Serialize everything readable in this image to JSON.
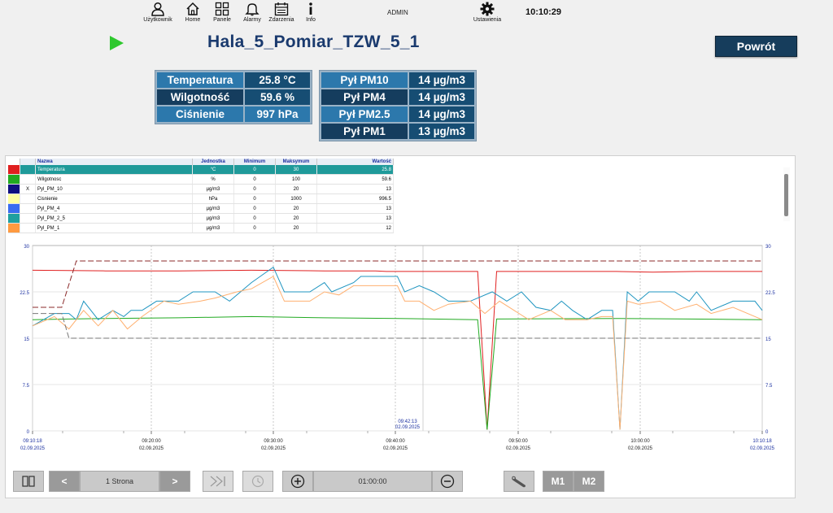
{
  "nav": {
    "items": [
      {
        "label": "Użytkownik",
        "icon": "user-icon"
      },
      {
        "label": "Home",
        "icon": "home-icon"
      },
      {
        "label": "Panele",
        "icon": "panels-icon"
      },
      {
        "label": "Alarmy",
        "icon": "bell-icon"
      },
      {
        "label": "Zdarzenia",
        "icon": "calendar-icon"
      },
      {
        "label": "Info",
        "icon": "info-icon"
      }
    ],
    "user": "ADMIN",
    "settings_label": "Ustawienia",
    "time": "10:10:29"
  },
  "page": {
    "title": "Hala_5_Pomiar_TZW_5_1",
    "back_label": "Powrót"
  },
  "env_table": [
    {
      "label": "Temperatura",
      "value": "25.8 °C"
    },
    {
      "label": "Wilgotność",
      "value": "59.6 %"
    },
    {
      "label": "Ciśnienie",
      "value": "997 hPa"
    }
  ],
  "dust_table": [
    {
      "label": "Pył PM10",
      "value": "14 µg/m3"
    },
    {
      "label": "Pył PM4",
      "value": "14 µg/m3"
    },
    {
      "label": "Pył PM2.5",
      "value": "14 µg/m3"
    },
    {
      "label": "Pył PM1",
      "value": "13 µg/m3"
    }
  ],
  "legend": {
    "headers": {
      "name": "Nazwa",
      "unit": "Jednostka",
      "min": "Minimum",
      "max": "Maksymum",
      "value": "Wartość"
    },
    "rows": [
      {
        "color": "#e02020",
        "mark": "",
        "name": "Temperatura",
        "unit": "°C",
        "min": "0",
        "max": "30",
        "value": "25.8",
        "selected": true
      },
      {
        "color": "#22aa22",
        "mark": "",
        "name": "Wilgotnosc",
        "unit": "%",
        "min": "0",
        "max": "100",
        "value": "59.6",
        "selected": false
      },
      {
        "color": "#101080",
        "mark": "X",
        "name": "Pyl_PM_10",
        "unit": "µg/m3",
        "min": "0",
        "max": "20",
        "value": "13",
        "selected": false
      },
      {
        "color": "#ffffa0",
        "mark": "",
        "name": "Cisnienie",
        "unit": "hPa",
        "min": "0",
        "max": "1000",
        "value": "996.5",
        "selected": false
      },
      {
        "color": "#3a6cf0",
        "mark": "",
        "name": "Pyl_PM_4",
        "unit": "µg/m3",
        "min": "0",
        "max": "20",
        "value": "13",
        "selected": false
      },
      {
        "color": "#1fa0a0",
        "mark": "",
        "name": "Pyl_PM_2_5",
        "unit": "µg/m3",
        "min": "0",
        "max": "20",
        "value": "13",
        "selected": false
      },
      {
        "color": "#ff9a40",
        "mark": "",
        "name": "Pyl_PM_1",
        "unit": "µg/m3",
        "min": "0",
        "max": "20",
        "value": "12",
        "selected": false
      }
    ]
  },
  "chart_data": {
    "type": "line",
    "yticks": [
      "30",
      "22.5",
      "15",
      "7.5",
      "0"
    ],
    "ylim": [
      0,
      30
    ],
    "x_labels": [
      {
        "time": "09:10:18",
        "date": "02.09.2025"
      },
      {
        "time": "09:20:00",
        "date": "02.09.2025"
      },
      {
        "time": "09:30:00",
        "date": "02.09.2025"
      },
      {
        "time": "09:40:00",
        "date": "02.09.2025"
      },
      {
        "time": "09:50:00",
        "date": "02.09.2025"
      },
      {
        "time": "10:00:00",
        "date": "02.09.2025"
      },
      {
        "time": "10:10:18",
        "date": "02.09.2025"
      }
    ],
    "cursor": {
      "time": "09:42:13",
      "date": "02.09.2025"
    },
    "series": [
      {
        "name": "Temperatura",
        "color": "#e02020",
        "values": [
          [
            0,
            26.0
          ],
          [
            10,
            25.9
          ],
          [
            20,
            25.9
          ],
          [
            30,
            26.0
          ],
          [
            40,
            25.9
          ],
          [
            47,
            25.9
          ],
          [
            48.5,
            25.8
          ],
          [
            50,
            25.8
          ],
          [
            55,
            25.8
          ],
          [
            61,
            25.8
          ],
          [
            62.3,
            0.2
          ],
          [
            63.6,
            25.8
          ],
          [
            70,
            25.8
          ],
          [
            80,
            25.8
          ],
          [
            85,
            25.7
          ],
          [
            91,
            25.8
          ],
          [
            100,
            25.8
          ]
        ]
      },
      {
        "name": "Wilgotnosc",
        "color": "#22aa22",
        "values": [
          [
            0,
            18.0
          ],
          [
            5,
            18.1
          ],
          [
            10,
            18.2
          ],
          [
            20,
            18.3
          ],
          [
            30,
            18.5
          ],
          [
            40,
            18.3
          ],
          [
            50,
            18.2
          ],
          [
            61,
            18.0
          ],
          [
            62.3,
            0.2
          ],
          [
            63.6,
            18.1
          ],
          [
            80,
            18.2
          ],
          [
            90,
            18.1
          ],
          [
            100,
            18.0
          ]
        ]
      },
      {
        "name": "Pyl_PM_2_5",
        "color": "#1f95c0",
        "values": [
          [
            0,
            17.0
          ],
          [
            3,
            19.0
          ],
          [
            5,
            19.0
          ],
          [
            6,
            18.0
          ],
          [
            7,
            21.0
          ],
          [
            9,
            18.0
          ],
          [
            11,
            19.5
          ],
          [
            12.5,
            18.5
          ],
          [
            13.5,
            19.5
          ],
          [
            15,
            19.5
          ],
          [
            17,
            21.0
          ],
          [
            20,
            21.0
          ],
          [
            22,
            22.5
          ],
          [
            25,
            22.5
          ],
          [
            27,
            21.0
          ],
          [
            30,
            24.0
          ],
          [
            33,
            26.5
          ],
          [
            34.5,
            22.5
          ],
          [
            38,
            22.5
          ],
          [
            40,
            24.0
          ],
          [
            41,
            22.5
          ],
          [
            44,
            24.0
          ],
          [
            45,
            25.0
          ],
          [
            50,
            25.0
          ],
          [
            51,
            22.5
          ],
          [
            53,
            23.5
          ],
          [
            55,
            22.5
          ],
          [
            57,
            21.0
          ],
          [
            60,
            21.0
          ],
          [
            63,
            22.5
          ],
          [
            65,
            21.0
          ],
          [
            67,
            22.5
          ],
          [
            69,
            20.0
          ],
          [
            71,
            19.5
          ],
          [
            72.5,
            21.0
          ],
          [
            74,
            19.5
          ],
          [
            76,
            18.0
          ],
          [
            78,
            19.5
          ],
          [
            79.5,
            19.5
          ],
          [
            80.5,
            0.2
          ],
          [
            81.5,
            22.5
          ],
          [
            83,
            21.0
          ],
          [
            84.5,
            22.5
          ],
          [
            88,
            22.5
          ],
          [
            90,
            21.0
          ],
          [
            91,
            22.5
          ],
          [
            93,
            19.5
          ],
          [
            96,
            21.0
          ],
          [
            99,
            21.0
          ],
          [
            100,
            19.5
          ]
        ]
      },
      {
        "name": "Pyl_PM_1",
        "color": "#ffb070",
        "values": [
          [
            0,
            17.0
          ],
          [
            3,
            18.5
          ],
          [
            5,
            16.5
          ],
          [
            7,
            19.5
          ],
          [
            9,
            17.0
          ],
          [
            11,
            19.5
          ],
          [
            13,
            16.5
          ],
          [
            15,
            18.5
          ],
          [
            18,
            21.0
          ],
          [
            20,
            20.5
          ],
          [
            23,
            21.0
          ],
          [
            25,
            21.5
          ],
          [
            28,
            22.5
          ],
          [
            30,
            23.0
          ],
          [
            33,
            25.0
          ],
          [
            34.5,
            21.0
          ],
          [
            38,
            21.0
          ],
          [
            40,
            22.5
          ],
          [
            42,
            22.0
          ],
          [
            44,
            23.5
          ],
          [
            50,
            23.5
          ],
          [
            51,
            21.0
          ],
          [
            53,
            21.0
          ],
          [
            55,
            19.5
          ],
          [
            57,
            20.5
          ],
          [
            60,
            21.0
          ],
          [
            62,
            19.0
          ],
          [
            64,
            21.0
          ],
          [
            66,
            19.5
          ],
          [
            68,
            18.0
          ],
          [
            71,
            19.5
          ],
          [
            73,
            18.0
          ],
          [
            76,
            18.0
          ],
          [
            78,
            18.5
          ],
          [
            79.5,
            18.5
          ],
          [
            80.5,
            0.2
          ],
          [
            81.5,
            21.0
          ],
          [
            83,
            20.5
          ],
          [
            86,
            21.0
          ],
          [
            88,
            19.5
          ],
          [
            91,
            20.5
          ],
          [
            93,
            19.0
          ],
          [
            96,
            20.0
          ],
          [
            100,
            18.0
          ]
        ]
      },
      {
        "name": "Pyl_PM_10",
        "color": "#8b2a2a",
        "dash": true,
        "values": [
          [
            0,
            20.0
          ],
          [
            4,
            20.0
          ],
          [
            6,
            27.5
          ],
          [
            100,
            27.5
          ]
        ]
      },
      {
        "name": "Cisnienie",
        "color": "#777777",
        "dash": true,
        "values": [
          [
            0,
            19.0
          ],
          [
            4,
            19.0
          ],
          [
            5,
            15.0
          ],
          [
            100,
            15.0
          ]
        ]
      }
    ]
  },
  "toolbar": {
    "page_label": "1 Strona",
    "prev_label": "<",
    "next_label": ">",
    "time_range": "01:00:00",
    "m1_label": "M1",
    "m2_label": "M2"
  }
}
